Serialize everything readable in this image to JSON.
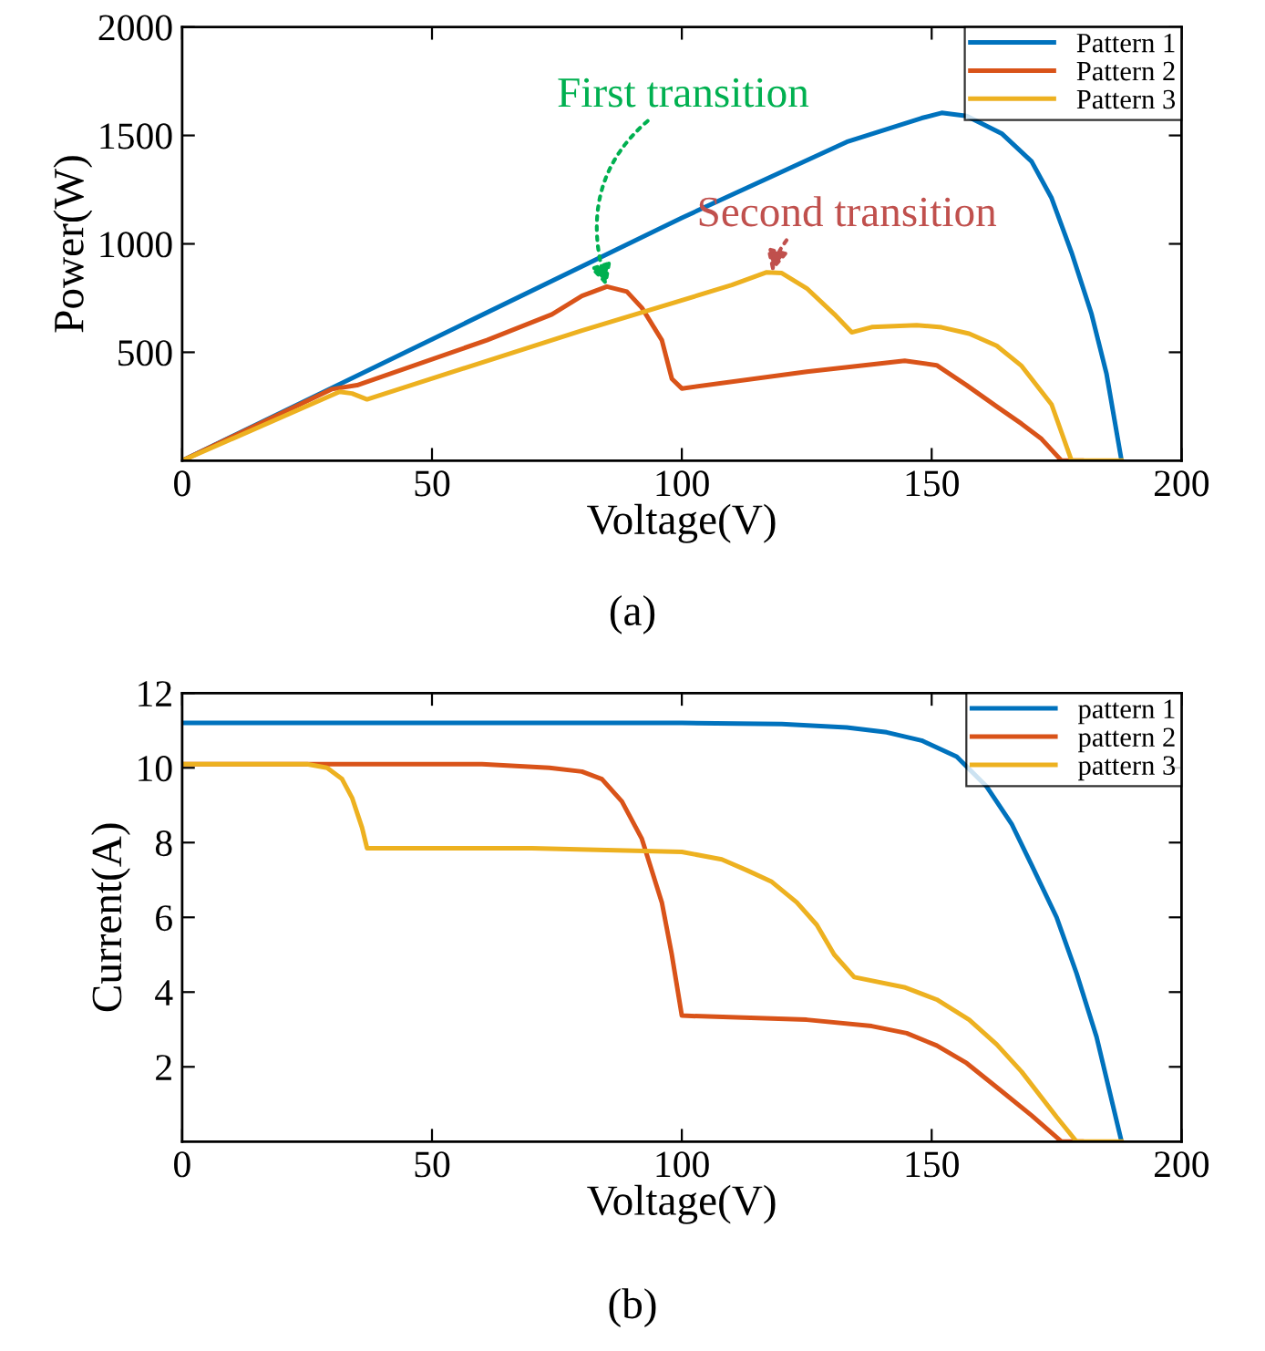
{
  "chart_data": [
    {
      "type": "line",
      "xlabel": "Voltage(V)",
      "ylabel": "Power(W)",
      "xlim": [
        0,
        200
      ],
      "xticks": [
        0,
        50,
        100,
        150,
        200
      ],
      "ylim": [
        0,
        2000
      ],
      "yticks": [
        500,
        1000,
        1500,
        2000
      ],
      "grid": false,
      "legend": "top right",
      "marker": "none",
      "line_style": "solid",
      "series": [
        {
          "name": "Pattern 1",
          "color": "#0072bd",
          "x": [
            0,
            50,
            100,
            133,
            148,
            152,
            157,
            164,
            170,
            174,
            178,
            182,
            185,
            188
          ],
          "values": [
            0,
            560,
            1120,
            1470,
            1580,
            1604,
            1590,
            1509,
            1380,
            1211,
            960,
            676,
            400,
            0
          ]
        },
        {
          "name": "Pattern 2",
          "color": "#d95319",
          "x": [
            0,
            30,
            35,
            61,
            74,
            80,
            85,
            89,
            92,
            96,
            98,
            100,
            125,
            144.6,
            151,
            157,
            163,
            168,
            172,
            176,
            180
          ],
          "values": [
            0,
            330,
            348,
            556,
            675,
            760,
            803,
            780,
            705,
            556,
            378,
            333,
            410,
            461,
            440,
            348,
            250,
            170,
            100,
            0,
            0
          ]
        },
        {
          "name": "Pattern 3",
          "color": "#edb120",
          "x": [
            0,
            31.5,
            34,
            37,
            80,
            110,
            117,
            120,
            125,
            130.5,
            134,
            138,
            147,
            152,
            157.5,
            163,
            168,
            174,
            178,
            188
          ],
          "values": [
            0,
            318,
            310,
            283,
            600,
            810,
            869,
            865,
            795,
            676,
            592,
            616,
            625,
            615,
            586,
            530,
            437,
            259,
            0,
            0
          ]
        }
      ],
      "annotations": [
        {
          "text": "First transition",
          "x": 85,
          "y": 803
        },
        {
          "text": "Second transition",
          "x": 118,
          "y": 869
        },
        "(a)"
      ]
    },
    {
      "type": "line",
      "xlabel": "Voltage(V)",
      "ylabel": "Current(A)",
      "xlim": [
        0,
        200
      ],
      "xticks": [
        0,
        50,
        100,
        150,
        200
      ],
      "ylim": [
        0,
        12
      ],
      "yticks": [
        2,
        4,
        6,
        8,
        10,
        12
      ],
      "grid": false,
      "legend": "top right",
      "marker": "none",
      "line_style": "solid",
      "series": [
        {
          "name": "pattern 1",
          "color": "#0072bd",
          "x": [
            0,
            100,
            120,
            133,
            141,
            148,
            155,
            161,
            166,
            170,
            175,
            179,
            183,
            188
          ],
          "values": [
            11.2,
            11.2,
            11.17,
            11.08,
            10.95,
            10.73,
            10.3,
            9.5,
            8.5,
            7.4,
            6.0,
            4.5,
            2.8,
            0
          ]
        },
        {
          "name": "pattern 2",
          "color": "#d95319",
          "x": [
            0,
            60,
            73.5,
            80,
            84,
            88,
            92,
            96,
            98,
            100,
            125,
            138,
            145,
            151,
            157,
            164,
            170,
            176,
            180
          ],
          "values": [
            10.1,
            10.1,
            10.0,
            9.9,
            9.7,
            9.1,
            8.1,
            6.4,
            5.0,
            3.37,
            3.26,
            3.09,
            2.9,
            2.57,
            2.1,
            1.35,
            0.7,
            0,
            0
          ]
        },
        {
          "name": "pattern 3",
          "color": "#edb120",
          "x": [
            0,
            25,
            29,
            32,
            34,
            36,
            37,
            70,
            100,
            108,
            113,
            118,
            123,
            127,
            130.5,
            134.5,
            144.5,
            151,
            157.5,
            163,
            168,
            175,
            179,
            188
          ],
          "values": [
            10.1,
            10.1,
            10.0,
            9.7,
            9.2,
            8.4,
            7.85,
            7.85,
            7.75,
            7.55,
            7.26,
            6.95,
            6.4,
            5.8,
            5.0,
            4.4,
            4.13,
            3.8,
            3.26,
            2.6,
            1.87,
            0.66,
            0,
            0
          ]
        }
      ],
      "annotations": [
        "(b)"
      ]
    }
  ]
}
